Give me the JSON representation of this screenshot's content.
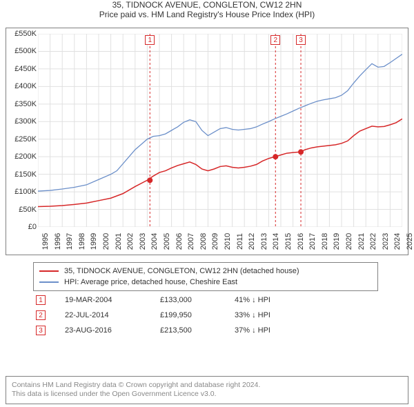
{
  "title": "35, TIDNOCK AVENUE, CONGLETON, CW12 2HN",
  "subtitle": "Price paid vs. HM Land Registry's House Price Index (HPI)",
  "chart": {
    "type": "line",
    "background_color": "#ffffff",
    "border_color": "#808080",
    "grid_color": "#e0e0e0",
    "yaxis": {
      "min": 0,
      "max": 550000,
      "step": 50000,
      "ticks": [
        "£0",
        "£50K",
        "£100K",
        "£150K",
        "£200K",
        "£250K",
        "£300K",
        "£350K",
        "£400K",
        "£450K",
        "£500K",
        "£550K"
      ],
      "label_fontsize": 11,
      "label_color": "#333333"
    },
    "xaxis": {
      "min": 1995,
      "max": 2025,
      "step": 1,
      "ticks": [
        "1995",
        "1996",
        "1997",
        "1998",
        "1999",
        "2000",
        "2001",
        "2002",
        "2003",
        "2004",
        "2005",
        "2006",
        "2007",
        "2008",
        "2009",
        "2010",
        "2011",
        "2012",
        "2013",
        "2014",
        "2015",
        "2016",
        "2017",
        "2018",
        "2019",
        "2020",
        "2021",
        "2022",
        "2023",
        "2024",
        "2025"
      ],
      "label_fontsize": 11,
      "label_color": "#333333",
      "label_rotation": -90
    },
    "series": [
      {
        "id": "property",
        "label": "35, TIDNOCK AVENUE, CONGLETON, CW12 2HN (detached house)",
        "color": "#d62728",
        "line_width": 1.5,
        "points": [
          [
            1995,
            58000
          ],
          [
            1996,
            59000
          ],
          [
            1997,
            61000
          ],
          [
            1998,
            64000
          ],
          [
            1999,
            68000
          ],
          [
            2000,
            75000
          ],
          [
            2001,
            82000
          ],
          [
            2002,
            95000
          ],
          [
            2003,
            115000
          ],
          [
            2004,
            133000
          ],
          [
            2004.5,
            145000
          ],
          [
            2005,
            155000
          ],
          [
            2005.5,
            160000
          ],
          [
            2006,
            168000
          ],
          [
            2006.5,
            175000
          ],
          [
            2007,
            180000
          ],
          [
            2007.5,
            185000
          ],
          [
            2008,
            178000
          ],
          [
            2008.5,
            165000
          ],
          [
            2009,
            160000
          ],
          [
            2009.5,
            165000
          ],
          [
            2010,
            172000
          ],
          [
            2010.5,
            174000
          ],
          [
            2011,
            170000
          ],
          [
            2011.5,
            168000
          ],
          [
            2012,
            170000
          ],
          [
            2012.5,
            173000
          ],
          [
            2013,
            178000
          ],
          [
            2013.5,
            188000
          ],
          [
            2014,
            195000
          ],
          [
            2014.5,
            199950
          ],
          [
            2015,
            205000
          ],
          [
            2015.5,
            210000
          ],
          [
            2016,
            212000
          ],
          [
            2016.6,
            213500
          ],
          [
            2017,
            220000
          ],
          [
            2017.5,
            225000
          ],
          [
            2018,
            228000
          ],
          [
            2018.5,
            230000
          ],
          [
            2019,
            232000
          ],
          [
            2019.5,
            234000
          ],
          [
            2020,
            238000
          ],
          [
            2020.5,
            245000
          ],
          [
            2021,
            260000
          ],
          [
            2021.5,
            273000
          ],
          [
            2022,
            280000
          ],
          [
            2022.5,
            287000
          ],
          [
            2023,
            285000
          ],
          [
            2023.5,
            286000
          ],
          [
            2024,
            291000
          ],
          [
            2024.5,
            297000
          ],
          [
            2025,
            308000
          ]
        ]
      },
      {
        "id": "hpi",
        "label": "HPI: Average price, detached house, Cheshire East",
        "color": "#6b8fc9",
        "line_width": 1.3,
        "points": [
          [
            1995,
            102000
          ],
          [
            1996,
            104000
          ],
          [
            1997,
            108000
          ],
          [
            1998,
            113000
          ],
          [
            1999,
            120000
          ],
          [
            2000,
            135000
          ],
          [
            2001,
            150000
          ],
          [
            2001.5,
            160000
          ],
          [
            2002,
            180000
          ],
          [
            2002.5,
            200000
          ],
          [
            2003,
            220000
          ],
          [
            2003.5,
            235000
          ],
          [
            2004,
            250000
          ],
          [
            2004.5,
            258000
          ],
          [
            2005,
            260000
          ],
          [
            2005.5,
            265000
          ],
          [
            2006,
            275000
          ],
          [
            2006.5,
            285000
          ],
          [
            2007,
            298000
          ],
          [
            2007.5,
            305000
          ],
          [
            2008,
            300000
          ],
          [
            2008.5,
            275000
          ],
          [
            2009,
            260000
          ],
          [
            2009.5,
            270000
          ],
          [
            2010,
            280000
          ],
          [
            2010.5,
            283000
          ],
          [
            2011,
            278000
          ],
          [
            2011.5,
            276000
          ],
          [
            2012,
            278000
          ],
          [
            2012.5,
            280000
          ],
          [
            2013,
            285000
          ],
          [
            2013.5,
            293000
          ],
          [
            2014,
            300000
          ],
          [
            2014.5,
            308000
          ],
          [
            2015,
            315000
          ],
          [
            2015.5,
            322000
          ],
          [
            2016,
            330000
          ],
          [
            2016.5,
            338000
          ],
          [
            2017,
            345000
          ],
          [
            2017.5,
            352000
          ],
          [
            2018,
            358000
          ],
          [
            2018.5,
            362000
          ],
          [
            2019,
            365000
          ],
          [
            2019.5,
            368000
          ],
          [
            2020,
            375000
          ],
          [
            2020.5,
            388000
          ],
          [
            2021,
            410000
          ],
          [
            2021.5,
            430000
          ],
          [
            2022,
            448000
          ],
          [
            2022.5,
            465000
          ],
          [
            2023,
            455000
          ],
          [
            2023.5,
            457000
          ],
          [
            2024,
            468000
          ],
          [
            2024.5,
            480000
          ],
          [
            2025,
            492000
          ]
        ]
      }
    ],
    "events": [
      {
        "n": "1",
        "year": 2004.22,
        "color": "#d62728"
      },
      {
        "n": "2",
        "year": 2014.56,
        "color": "#d62728"
      },
      {
        "n": "3",
        "year": 2016.65,
        "color": "#d62728"
      }
    ],
    "markers": [
      {
        "year": 2004.22,
        "value": 133000,
        "color": "#d62728",
        "radius": 4
      },
      {
        "year": 2014.56,
        "value": 199950,
        "color": "#d62728",
        "radius": 4
      },
      {
        "year": 2016.65,
        "value": 213500,
        "color": "#d62728",
        "radius": 4
      }
    ]
  },
  "legend": {
    "border_color": "#808080",
    "items": [
      {
        "color": "#d62728",
        "label": "35, TIDNOCK AVENUE, CONGLETON, CW12 2HN (detached house)"
      },
      {
        "color": "#6b8fc9",
        "label": "HPI: Average price, detached house, Cheshire East"
      }
    ]
  },
  "events_table": [
    {
      "n": "1",
      "color": "#d62728",
      "date": "19-MAR-2004",
      "price": "£133,000",
      "delta": "41% ↓ HPI"
    },
    {
      "n": "2",
      "color": "#d62728",
      "date": "22-JUL-2014",
      "price": "£199,950",
      "delta": "33% ↓ HPI"
    },
    {
      "n": "3",
      "color": "#d62728",
      "date": "23-AUG-2016",
      "price": "£213,500",
      "delta": "37% ↓ HPI"
    }
  ],
  "footer": {
    "line1": "Contains HM Land Registry data © Crown copyright and database right 2024.",
    "line2": "This data is licensed under the Open Government Licence v3.0.",
    "color": "#888888",
    "border_color": "#808080"
  }
}
